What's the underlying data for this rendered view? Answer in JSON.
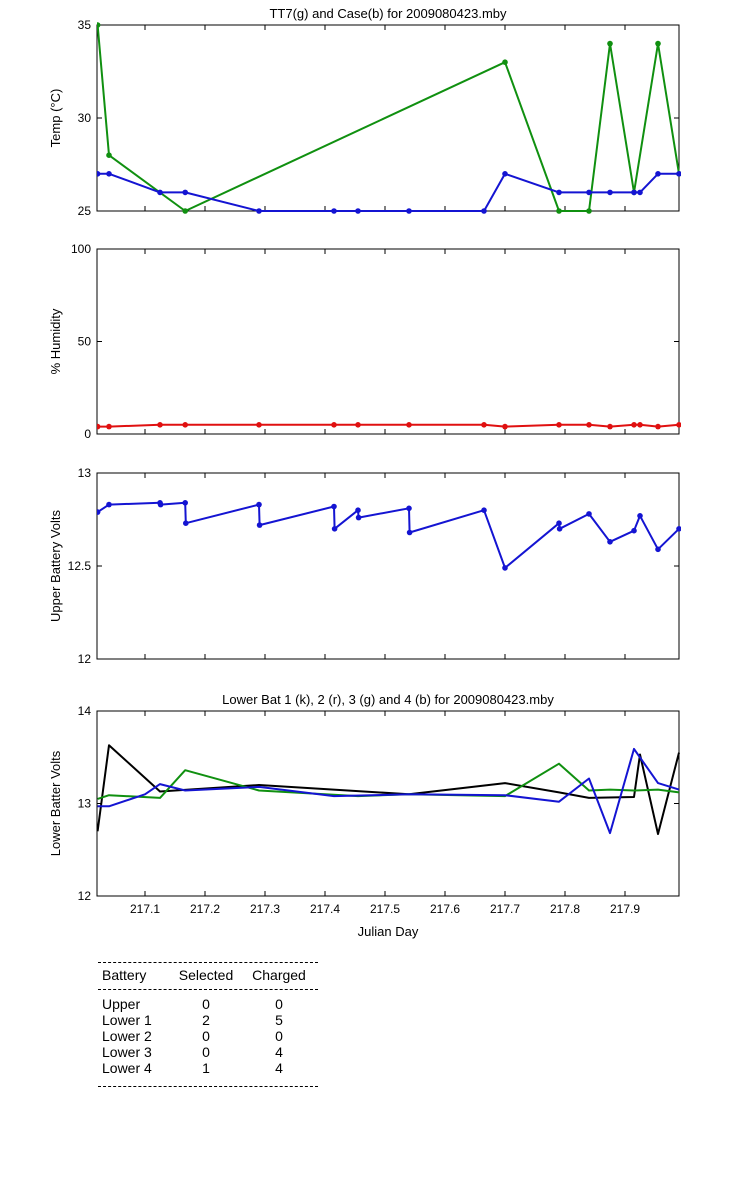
{
  "chart_data": [
    {
      "type": "line",
      "title": "TT7(g) and Case(b) for 2009080423.mby",
      "ylabel": "Temp  (°C)",
      "xlabel": "",
      "ylim": [
        25,
        35
      ],
      "xlim": [
        217.02,
        217.99
      ],
      "yticks": [
        "25",
        "30",
        "35"
      ],
      "series": [
        {
          "color": "#109010",
          "marker": true,
          "x": [
            217.021,
            217.04,
            217.167,
            217.7,
            217.79,
            217.84,
            217.875,
            217.915,
            217.955,
            217.99
          ],
          "y": [
            35,
            28,
            25,
            33,
            25,
            25,
            34,
            26,
            34,
            27
          ]
        },
        {
          "color": "#1414d2",
          "marker": true,
          "x": [
            217.021,
            217.04,
            217.125,
            217.167,
            217.29,
            217.415,
            217.455,
            217.54,
            217.665,
            217.7,
            217.79,
            217.84,
            217.875,
            217.915,
            217.925,
            217.955,
            217.99
          ],
          "y": [
            27,
            27,
            26,
            26,
            25,
            25,
            25,
            25,
            25,
            27,
            26,
            26,
            26,
            26,
            26,
            27,
            27
          ]
        }
      ]
    },
    {
      "type": "line",
      "title": "",
      "ylabel": "% Humidity",
      "xlabel": "",
      "ylim": [
        0,
        100
      ],
      "xlim": [
        217.02,
        217.99
      ],
      "yticks": [
        "0",
        "50",
        "100"
      ],
      "series": [
        {
          "color": "#e01010",
          "marker": true,
          "x": [
            217.021,
            217.04,
            217.125,
            217.167,
            217.29,
            217.415,
            217.455,
            217.54,
            217.665,
            217.7,
            217.79,
            217.84,
            217.875,
            217.915,
            217.925,
            217.955,
            217.99
          ],
          "y": [
            4,
            4,
            5,
            5,
            5,
            5,
            5,
            5,
            5,
            4,
            5,
            5,
            4,
            5,
            5,
            4,
            5
          ]
        }
      ]
    },
    {
      "type": "line",
      "title": "",
      "ylabel": "Upper Battery Volts",
      "xlabel": "",
      "ylim": [
        12,
        13
      ],
      "xlim": [
        217.02,
        217.99
      ],
      "yticks": [
        "12",
        "12.5",
        "13"
      ],
      "series": [
        {
          "color": "#1414d2",
          "marker": true,
          "x": [
            217.021,
            217.04,
            217.125,
            217.126,
            217.167,
            217.168,
            217.29,
            217.291,
            217.415,
            217.416,
            217.455,
            217.456,
            217.54,
            217.541,
            217.665,
            217.7,
            217.79,
            217.791,
            217.84,
            217.875,
            217.915,
            217.925,
            217.955,
            217.99
          ],
          "y": [
            12.79,
            12.83,
            12.84,
            12.83,
            12.84,
            12.73,
            12.83,
            12.72,
            12.82,
            12.7,
            12.8,
            12.76,
            12.81,
            12.68,
            12.8,
            12.49,
            12.73,
            12.7,
            12.78,
            12.63,
            12.69,
            12.77,
            12.59,
            12.7
          ]
        }
      ]
    },
    {
      "type": "line",
      "title": "Lower Bat 1 (k), 2 (r), 3 (g) and 4 (b) for 2009080423.mby",
      "ylabel": "Lower Batter Volts",
      "xlabel": "Julian Day",
      "ylim": [
        12,
        14
      ],
      "xlim": [
        217.02,
        217.99
      ],
      "yticks": [
        "12",
        "13",
        "14"
      ],
      "xticks": [
        217.1,
        217.2,
        217.3,
        217.4,
        217.5,
        217.6,
        217.7,
        217.8,
        217.9
      ],
      "xticklabels": [
        "217.1",
        "217.2",
        "217.3",
        "217.4",
        "217.5",
        "217.6",
        "217.7",
        "217.8",
        "217.9"
      ],
      "series": [
        {
          "color": "#000000",
          "marker": false,
          "x": [
            217.021,
            217.04,
            217.125,
            217.29,
            217.54,
            217.7,
            217.79,
            217.84,
            217.915,
            217.925,
            217.955,
            217.99
          ],
          "y": [
            12.7,
            13.63,
            13.13,
            13.2,
            13.1,
            13.22,
            13.12,
            13.06,
            13.07,
            13.53,
            12.67,
            13.55
          ]
        },
        {
          "color": "#109010",
          "marker": false,
          "x": [
            217.021,
            217.04,
            217.125,
            217.167,
            217.29,
            217.455,
            217.54,
            217.7,
            217.79,
            217.84,
            217.875,
            217.915,
            217.955,
            217.99
          ],
          "y": [
            13.05,
            13.09,
            13.06,
            13.36,
            13.14,
            13.08,
            13.1,
            13.08,
            13.43,
            13.14,
            13.15,
            13.14,
            13.15,
            13.12
          ]
        },
        {
          "color": "#1414d2",
          "marker": false,
          "x": [
            217.021,
            217.04,
            217.1,
            217.125,
            217.167,
            217.29,
            217.415,
            217.54,
            217.7,
            217.79,
            217.84,
            217.875,
            217.915,
            217.955,
            217.99
          ],
          "y": [
            12.97,
            12.97,
            13.1,
            13.21,
            13.14,
            13.18,
            13.08,
            13.1,
            13.09,
            13.02,
            13.27,
            12.68,
            13.59,
            13.22,
            13.15
          ]
        }
      ]
    }
  ],
  "battery_table": {
    "headers": [
      "Battery",
      "Selected",
      "Charged"
    ],
    "rows": [
      [
        "Upper",
        "0",
        "0"
      ],
      [
        "Lower 1",
        "2",
        "5"
      ],
      [
        "Lower 2",
        "0",
        "0"
      ],
      [
        "Lower 3",
        "0",
        "4"
      ],
      [
        "Lower 4",
        "1",
        "4"
      ]
    ]
  }
}
